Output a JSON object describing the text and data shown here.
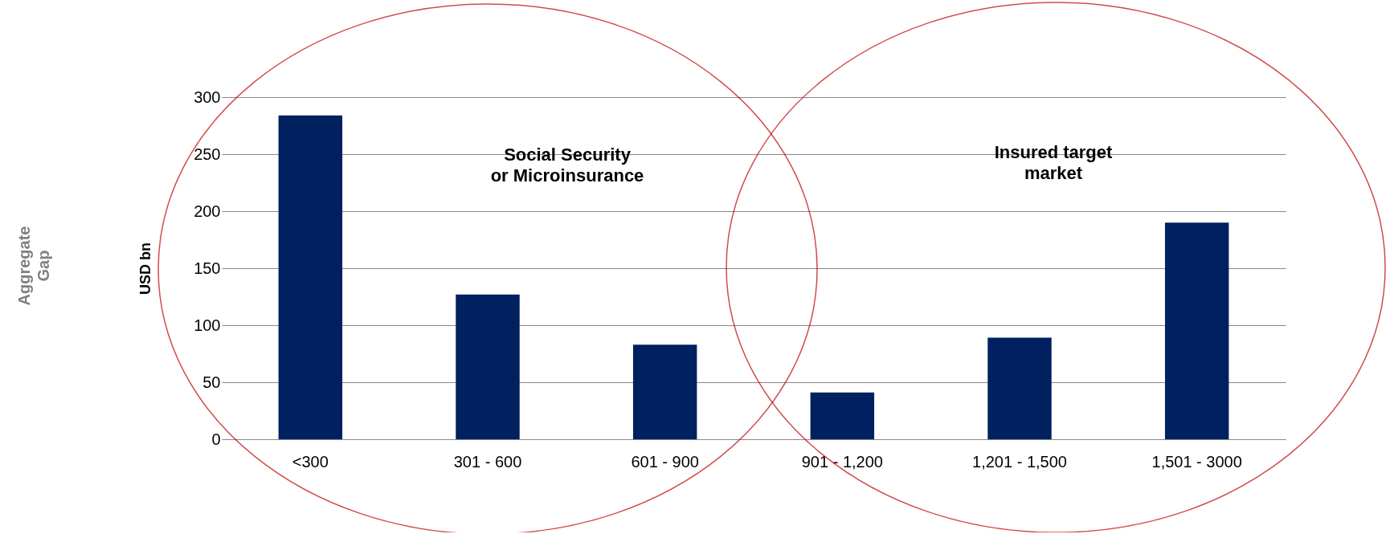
{
  "chart_data": {
    "type": "bar",
    "categories": [
      "<300",
      "301 - 600",
      "601 - 900",
      "901 - 1,200",
      "1,201 - 1,500",
      "1,501 - 3000"
    ],
    "values": [
      284,
      127,
      83,
      41,
      89,
      190
    ],
    "color": "#002060",
    "ylabel": "USD bn",
    "ylim": [
      0,
      300
    ],
    "yticks": [
      0,
      50,
      100,
      150,
      200,
      250,
      300
    ],
    "grid": "y",
    "annotations": [
      "Aggregate\nGap",
      "Social Security\nor Microinsurance",
      "Insured target\nmarket"
    ]
  }
}
